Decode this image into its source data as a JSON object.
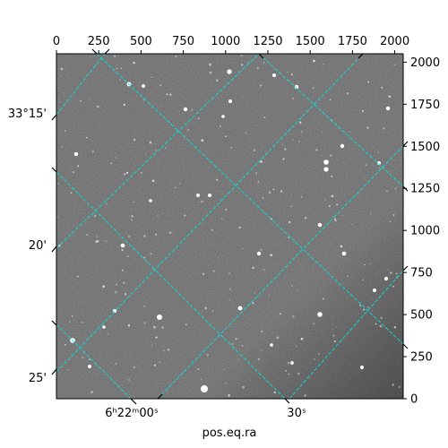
{
  "figure": {
    "xlabel": "pos.eq.ra",
    "top_axis": {
      "range": [
        0,
        2050
      ],
      "ticks": [
        0,
        250,
        500,
        750,
        1000,
        1250,
        1500,
        1750,
        2000
      ]
    },
    "right_axis": {
      "range": [
        0,
        2050
      ],
      "ticks": [
        0,
        250,
        500,
        750,
        1000,
        1250,
        1500,
        1750,
        2000
      ]
    },
    "ra_labels": [
      {
        "text": "6ʰ22ᵐ00ˢ"
      },
      {
        "text": "30ˢ"
      }
    ],
    "dec_labels": [
      {
        "text": "33°15'"
      },
      {
        "text": "20'"
      },
      {
        "text": "25'"
      }
    ],
    "grid_color": "#00e5e5",
    "image_style": "grayscale star field with dashed celestial coordinate grid"
  }
}
